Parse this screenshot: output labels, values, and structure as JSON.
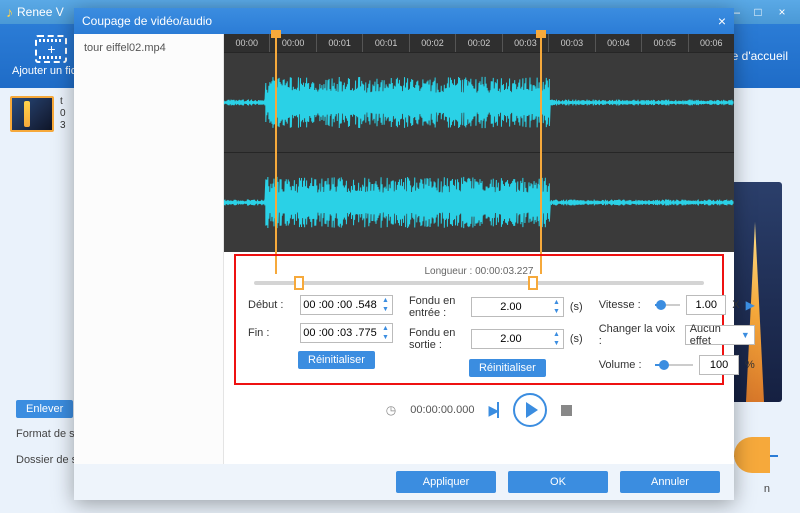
{
  "bg": {
    "app_title": "Renee V",
    "toolbar": {
      "add_file": "Ajouter un fichie",
      "homepage": "Page d'accueil"
    },
    "thumb_meta": [
      "t",
      "0",
      "3"
    ],
    "remove_btn": "Enlever",
    "bottom": {
      "format_label": "Format de s",
      "folder_label": "Dossier de s",
      "n": "n"
    }
  },
  "modal": {
    "title": "Coupage de vidéo/audio",
    "file_selected": "tour eiffel02.mp4",
    "ruler": [
      "00:00",
      "00:00",
      "00:01",
      "00:01",
      "00:02",
      "00:02",
      "00:03",
      "00:03",
      "00:04",
      "00:05",
      "00:06"
    ],
    "waveform": {
      "bg_color": "#3a3a3a",
      "wave_color": "#2ad1e6",
      "selection_color": "#f6a93b",
      "sel_start_pct": 10,
      "sel_end_pct": 62
    },
    "length_label": "Longueur : 00:00:03.227",
    "settings": {
      "start_label": "Début :",
      "start_value": "00 :00 :00 .548",
      "end_label": "Fin :",
      "end_value": "00 :00 :03 .775",
      "reset": "Réinitialiser",
      "fadein_label": "Fondu en entrée :",
      "fadein_value": "2.00",
      "fadeout_label": "Fondu en sortie :",
      "fadeout_value": "2.00",
      "seconds_unit": "(s)",
      "speed_label": "Vitesse :",
      "speed_value": "1.00",
      "speed_unit": "X",
      "speed_slider_pct": 25,
      "voice_label": "Changer la voix :",
      "voice_value": "Aucun effet",
      "volume_label": "Volume :",
      "volume_value": "100",
      "volume_unit": "%",
      "volume_slider_pct": 25
    },
    "playbar": {
      "time": "00:00:00.000"
    },
    "buttons": {
      "apply": "Appliquer",
      "ok": "OK",
      "cancel": "Annuler"
    }
  },
  "colors": {
    "accent": "#3b8de0",
    "orange": "#f6a93b",
    "red": "#e11"
  }
}
